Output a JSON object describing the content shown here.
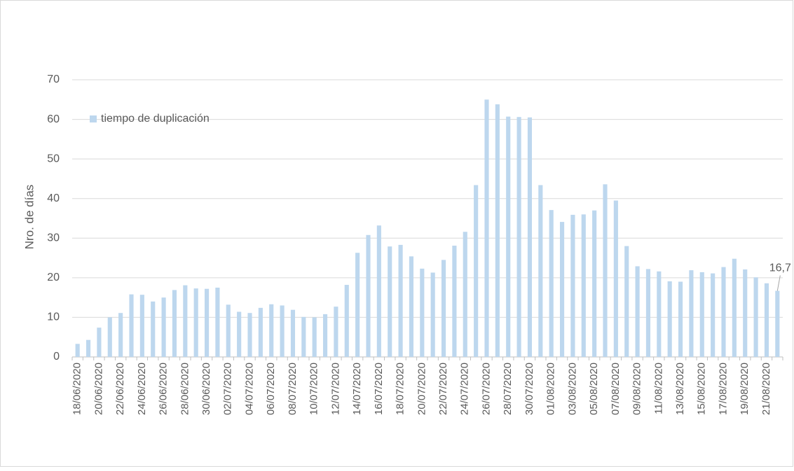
{
  "chart_data": {
    "type": "bar",
    "y_label": "Nro. de días",
    "categories": [
      "18/06/2020",
      null,
      "20/06/2020",
      null,
      "22/06/2020",
      null,
      "24/06/2020",
      null,
      "26/06/2020",
      null,
      "28/06/2020",
      null,
      "30/06/2020",
      null,
      "02/07/2020",
      null,
      "04/07/2020",
      null,
      "06/07/2020",
      null,
      "08/07/2020",
      null,
      "10/07/2020",
      null,
      "12/07/2020",
      null,
      "14/07/2020",
      null,
      "16/07/2020",
      null,
      "18/07/2020",
      null,
      "20/07/2020",
      null,
      "22/07/2020",
      null,
      "24/07/2020",
      null,
      "26/07/2020",
      null,
      "28/07/2020",
      null,
      "30/07/2020",
      null,
      "01/08/2020",
      null,
      "03/08/2020",
      null,
      "05/08/2020",
      null,
      "07/08/2020",
      null,
      "09/08/2020",
      null,
      "11/08/2020",
      null,
      "13/08/2020",
      null,
      "15/08/2020",
      null,
      "17/08/2020",
      null,
      "19/08/2020",
      null,
      "21/08/2020",
      null
    ],
    "series": [
      {
        "name": "tiempo de duplicación",
        "color": "#bdd7ee",
        "values": [
          3.3,
          4.3,
          7.4,
          10.0,
          11.1,
          15.8,
          15.7,
          14.0,
          15.0,
          16.9,
          18.1,
          17.3,
          17.2,
          17.5,
          13.2,
          11.4,
          11.1,
          12.4,
          13.3,
          13.0,
          11.9,
          10.1,
          10.0,
          10.8,
          12.7,
          18.2,
          26.3,
          30.8,
          33.2,
          27.9,
          28.3,
          25.4,
          22.3,
          21.3,
          24.5,
          28.1,
          31.6,
          43.4,
          65.0,
          63.8,
          60.7,
          60.6,
          60.5,
          43.4,
          37.1,
          34.1,
          35.9,
          36.0,
          37.0,
          43.6,
          39.5,
          28.0,
          22.9,
          22.2,
          21.6,
          19.1,
          19.0,
          21.9,
          21.4,
          21.1,
          22.7,
          24.8,
          22.1,
          20.1,
          18.6,
          16.7
        ],
        "value_labels": [
          null,
          null,
          null,
          null,
          null,
          null,
          null,
          null,
          null,
          null,
          null,
          null,
          null,
          null,
          null,
          null,
          null,
          null,
          null,
          null,
          null,
          null,
          null,
          null,
          null,
          null,
          null,
          null,
          null,
          null,
          null,
          null,
          null,
          null,
          null,
          null,
          null,
          null,
          null,
          null,
          null,
          null,
          null,
          null,
          null,
          null,
          null,
          null,
          null,
          null,
          null,
          null,
          null,
          null,
          null,
          null,
          null,
          null,
          null,
          null,
          null,
          null,
          null,
          null,
          null,
          "16,7"
        ]
      }
    ],
    "ylim": [
      0,
      70
    ],
    "yticks": [
      0,
      10,
      20,
      30,
      40,
      50,
      60,
      70
    ],
    "grid": true,
    "legend": "top-left"
  }
}
